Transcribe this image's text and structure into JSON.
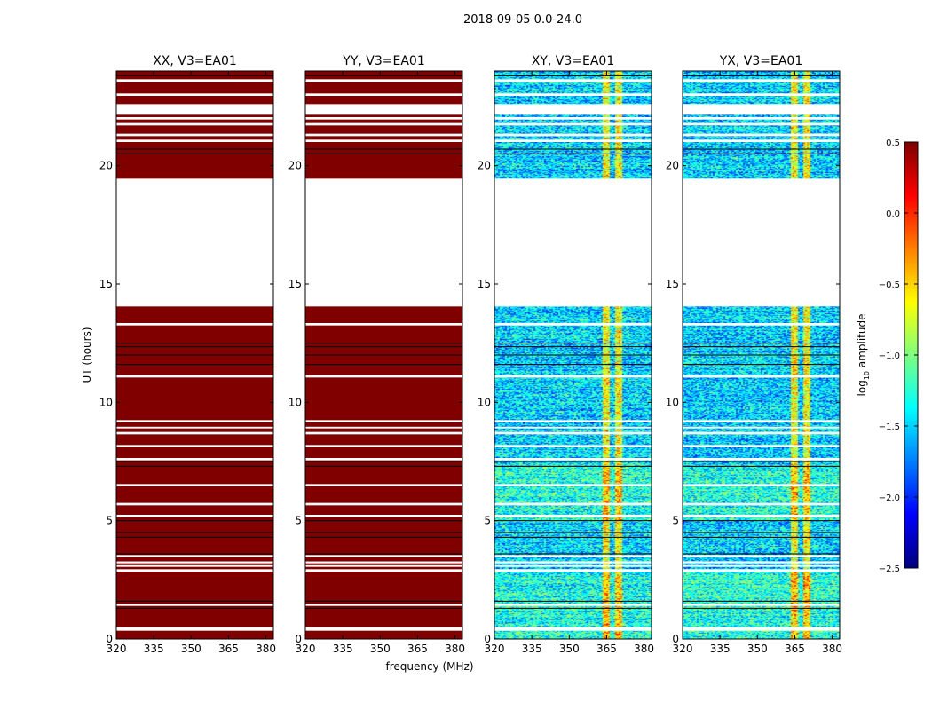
{
  "chart_data": {
    "type": "heatmap",
    "title": "2018-09-05 0.0-24.0",
    "xlabel": "frequency (MHz)",
    "ylabel": "UT (hours)",
    "xlim": [
      320,
      383
    ],
    "ylim": [
      0,
      24
    ],
    "xticks": [
      "320",
      "335",
      "350",
      "365",
      "380"
    ],
    "yticks": [
      "0",
      "5",
      "10",
      "15",
      "20"
    ],
    "panels": [
      {
        "title": "XX, V3=EA01",
        "mode": "saturated",
        "level": 0.5
      },
      {
        "title": "YY, V3=EA01",
        "mode": "saturated",
        "level": 0.5
      },
      {
        "title": "XY, V3=EA01",
        "mode": "noise",
        "level": -1.5
      },
      {
        "title": "YX, V3=EA01",
        "mode": "noise",
        "level": -1.5
      }
    ],
    "flagged_hours": [
      [
        14.05,
        19.45
      ],
      [
        0.35,
        0.5
      ],
      [
        1.4,
        1.5
      ],
      [
        2.85,
        2.95
      ],
      [
        3.05,
        3.12
      ],
      [
        3.2,
        3.28
      ],
      [
        3.45,
        3.55
      ],
      [
        5.15,
        5.25
      ],
      [
        5.65,
        5.75
      ],
      [
        6.45,
        6.55
      ],
      [
        7.55,
        7.65
      ],
      [
        8.1,
        8.2
      ],
      [
        8.65,
        8.75
      ],
      [
        8.9,
        8.97
      ],
      [
        9.15,
        9.25
      ],
      [
        11.05,
        11.15
      ],
      [
        13.25,
        13.35
      ],
      [
        14.15,
        14.25
      ],
      [
        21.0,
        21.1
      ],
      [
        21.25,
        21.35
      ],
      [
        21.7,
        21.8
      ],
      [
        21.95,
        22.05
      ],
      [
        22.15,
        22.6
      ],
      [
        22.95,
        23.05
      ],
      [
        23.55,
        23.65
      ]
    ],
    "dark_line_hours": [
      1.3,
      1.6,
      3.6,
      4.3,
      4.5,
      5.0,
      7.3,
      7.5,
      11.6,
      12.0,
      12.35,
      12.5,
      20.5,
      20.7,
      23.8
    ],
    "rfi_channels_mhz": [
      [
        363,
        366
      ],
      [
        368,
        371
      ]
    ],
    "colorbar": {
      "label": "log10 amplitude",
      "label_main": "log",
      "label_sub": "10",
      "label_rest": " amplitude",
      "range": [
        -2.5,
        0.5
      ],
      "ticks": [
        "0.5",
        "0.0",
        "−0.5",
        "−1.0",
        "−1.5",
        "−2.0",
        "−2.5"
      ],
      "colormap": "jet"
    }
  }
}
